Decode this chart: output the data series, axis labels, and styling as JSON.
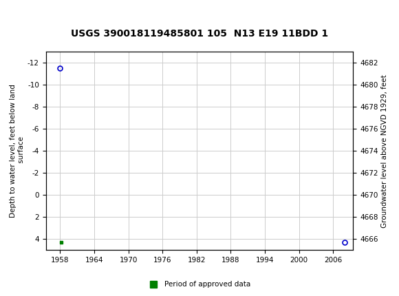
{
  "title": "USGS 390018119485801 105  N13 E19 11BDD 1",
  "ylabel_left": "Depth to water level, feet below land\n surface",
  "ylabel_right": "Groundwater level above NGVD 1929, feet",
  "ylim_left": [
    5,
    -13
  ],
  "ylim_right": [
    4665,
    4683
  ],
  "xlim": [
    1955.5,
    2009.5
  ],
  "xticks": [
    1958,
    1964,
    1970,
    1976,
    1982,
    1988,
    1994,
    2000,
    2006
  ],
  "yticks_left": [
    4,
    2,
    0,
    -2,
    -4,
    -6,
    -8,
    -10,
    -12
  ],
  "yticks_right": [
    4666,
    4668,
    4670,
    4672,
    4674,
    4676,
    4678,
    4680,
    4682
  ],
  "data_points_x": [
    1958.0,
    2008.0
  ],
  "data_points_y": [
    -11.5,
    4.3
  ],
  "point_color": "#0000cc",
  "marker_size": 5,
  "approved_x": 1958.2,
  "approved_y": 4.3,
  "approved_color": "#008000",
  "background_color": "#ffffff",
  "plot_bg_color": "#ffffff",
  "grid_color": "#cccccc",
  "header_color": "#1a6b3a",
  "legend_label": "Period of approved data",
  "legend_marker_color": "#008000",
  "title_fontsize": 10,
  "axis_label_fontsize": 7.5,
  "tick_fontsize": 7.5
}
